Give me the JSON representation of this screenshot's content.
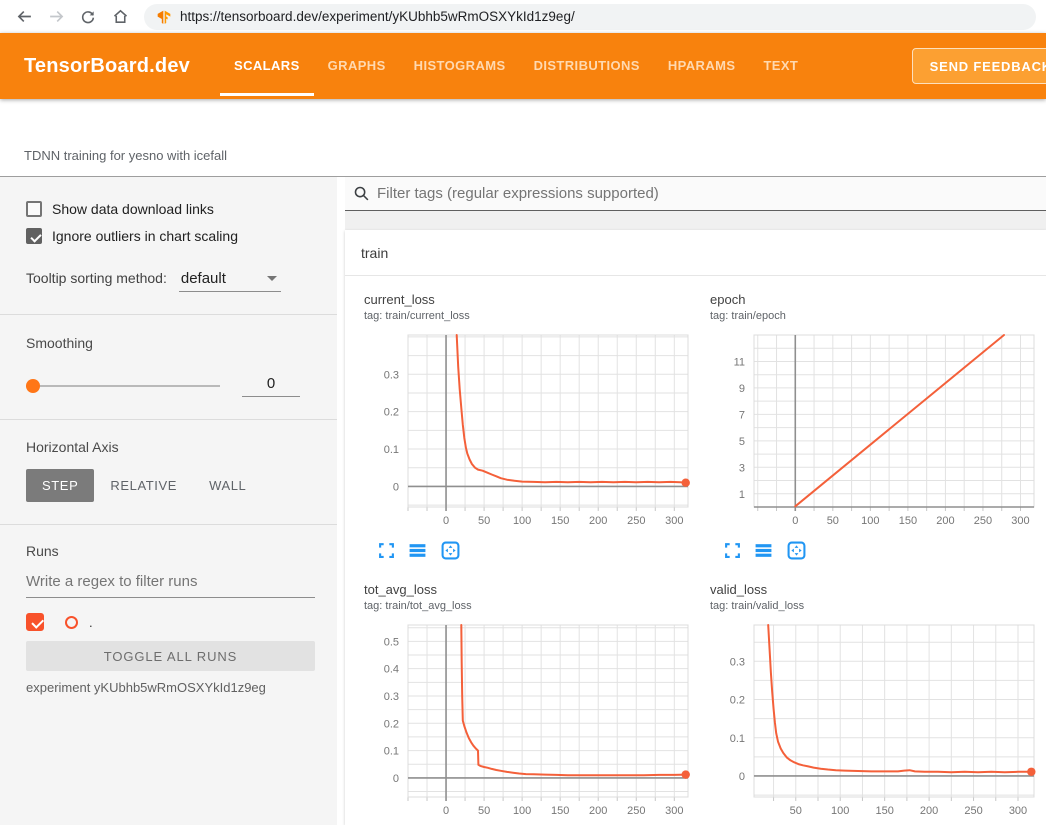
{
  "browser": {
    "url": "https://tensorboard.dev/experiment/yKUbhb5wRmOSXYkId1z9eg/"
  },
  "icons": {
    "back": "←",
    "forward": "→",
    "browser_set": [
      "back-icon",
      "forward-icon",
      "reload-icon",
      "home-icon",
      "tensorboard-favicon"
    ],
    "main_set": [
      "search-icon"
    ],
    "chart_actions": [
      "fullscreen-icon",
      "data-table-icon",
      "fit-domain-icon"
    ]
  },
  "header": {
    "brand": "TensorBoard.dev",
    "nav": [
      {
        "label": "SCALARS",
        "active": true
      },
      {
        "label": "GRAPHS",
        "active": false
      },
      {
        "label": "HISTOGRAMS",
        "active": false
      },
      {
        "label": "DISTRIBUTIONS",
        "active": false
      },
      {
        "label": "HPARAMS",
        "active": false
      },
      {
        "label": "TEXT",
        "active": false
      }
    ],
    "feedback_label": "SEND FEEDBACK"
  },
  "experiment_title": "TDNN training for yesno with icefall",
  "sidebar": {
    "show_download": {
      "label": "Show data download links",
      "checked": false
    },
    "ignore_outliers": {
      "label": "Ignore outliers in chart scaling",
      "checked": true
    },
    "tooltip_sort": {
      "label": "Tooltip sorting method:",
      "value": "default"
    },
    "smoothing": {
      "label": "Smoothing",
      "value": "0"
    },
    "axis": {
      "label": "Horizontal Axis",
      "options": [
        "STEP",
        "RELATIVE",
        "WALL"
      ],
      "selected": "STEP"
    },
    "runs": {
      "label": "Runs",
      "filter_placeholder": "Write a regex to filter runs",
      "items": [
        {
          "name": ".",
          "checked": true
        }
      ],
      "toggle_label": "TOGGLE ALL RUNS",
      "experiment": "experiment yKUbhb5wRmOSXYkId1z9eg"
    }
  },
  "main": {
    "filter_placeholder": "Filter tags (regular expressions supported)",
    "section": "train"
  },
  "colors": {
    "header_bg": "#f8820d",
    "feedback_btn_bg": "#fca032",
    "feedback_btn_border": "#fde0bd",
    "nav_inactive": "#ffd9b0",
    "run_accent": "#f8522b",
    "slider_accent": "#ff7617",
    "icon_blue": "#2196f3",
    "checked_checkbox": "#616161"
  },
  "chart_data": [
    {
      "type": "line",
      "title": "current_loss",
      "tag": "tag: train/current_loss",
      "color": "#f4603a",
      "grid": true,
      "legend": "none",
      "x_range": [
        -50,
        318
      ],
      "y_range": [
        -0.055,
        0.405
      ],
      "x_ticks": [
        0,
        50,
        100,
        150,
        200,
        250,
        300
      ],
      "y_ticks": [
        0,
        0.1,
        0.2,
        0.3
      ],
      "x_minor": 25,
      "y_minor": 0.05,
      "end_dot": true,
      "points": [
        [
          14,
          0.405
        ],
        [
          16,
          0.32
        ],
        [
          18,
          0.26
        ],
        [
          20,
          0.21
        ],
        [
          22,
          0.165
        ],
        [
          24,
          0.13
        ],
        [
          26,
          0.105
        ],
        [
          28,
          0.088
        ],
        [
          31,
          0.072
        ],
        [
          34,
          0.06
        ],
        [
          38,
          0.05
        ],
        [
          42,
          0.045
        ],
        [
          48,
          0.042
        ],
        [
          54,
          0.037
        ],
        [
          60,
          0.032
        ],
        [
          66,
          0.027
        ],
        [
          72,
          0.022
        ],
        [
          80,
          0.018
        ],
        [
          90,
          0.015
        ],
        [
          100,
          0.013
        ],
        [
          115,
          0.012
        ],
        [
          130,
          0.011
        ],
        [
          145,
          0.012
        ],
        [
          160,
          0.011
        ],
        [
          175,
          0.012
        ],
        [
          190,
          0.011
        ],
        [
          205,
          0.012
        ],
        [
          220,
          0.011
        ],
        [
          235,
          0.012
        ],
        [
          250,
          0.011
        ],
        [
          265,
          0.012
        ],
        [
          280,
          0.011
        ],
        [
          295,
          0.012
        ],
        [
          308,
          0.011
        ],
        [
          315,
          0.01
        ]
      ]
    },
    {
      "type": "line",
      "title": "epoch",
      "tag": "tag: train/epoch",
      "color": "#f4603a",
      "grid": true,
      "legend": "none",
      "x_range": [
        -55,
        318
      ],
      "y_range": [
        0,
        13
      ],
      "x_ticks": [
        0,
        50,
        100,
        150,
        200,
        250,
        300
      ],
      "y_ticks": [
        1,
        3,
        5,
        7,
        9,
        11
      ],
      "x_minor": 25,
      "y_minor": 1,
      "end_dot": false,
      "points": [
        [
          0,
          0.05
        ],
        [
          278,
          13
        ]
      ]
    },
    {
      "type": "line",
      "title": "tot_avg_loss",
      "tag": "tag: train/tot_avg_loss",
      "color": "#f4603a",
      "grid": true,
      "legend": "none",
      "x_range": [
        -50,
        318
      ],
      "y_range": [
        -0.07,
        0.56
      ],
      "x_ticks": [
        0,
        50,
        100,
        150,
        200,
        250,
        300
      ],
      "y_ticks": [
        0,
        0.1,
        0.2,
        0.3,
        0.4,
        0.5
      ],
      "x_minor": 25,
      "y_minor": 0.05,
      "end_dot": true,
      "points": [
        [
          20,
          0.56
        ],
        [
          20.6,
          0.42
        ],
        [
          21.2,
          0.3
        ],
        [
          22,
          0.21
        ],
        [
          24,
          0.19
        ],
        [
          27,
          0.165
        ],
        [
          30,
          0.145
        ],
        [
          33,
          0.13
        ],
        [
          36,
          0.118
        ],
        [
          39,
          0.108
        ],
        [
          42,
          0.1
        ],
        [
          42.5,
          0.048
        ],
        [
          45,
          0.044
        ],
        [
          50,
          0.04
        ],
        [
          55,
          0.037
        ],
        [
          60,
          0.033
        ],
        [
          66,
          0.029
        ],
        [
          72,
          0.026
        ],
        [
          80,
          0.022
        ],
        [
          88,
          0.019
        ],
        [
          96,
          0.016
        ],
        [
          105,
          0.014
        ],
        [
          115,
          0.013
        ],
        [
          130,
          0.012
        ],
        [
          145,
          0.011
        ],
        [
          160,
          0.01
        ],
        [
          180,
          0.01
        ],
        [
          200,
          0.01
        ],
        [
          220,
          0.01
        ],
        [
          240,
          0.01
        ],
        [
          260,
          0.01
        ],
        [
          280,
          0.011
        ],
        [
          300,
          0.011
        ],
        [
          315,
          0.012
        ]
      ]
    },
    {
      "type": "line",
      "title": "valid_loss",
      "tag": "tag: train/valid_loss",
      "color": "#f4603a",
      "grid": true,
      "legend": "none",
      "x_range": [
        3,
        318
      ],
      "y_range": [
        -0.055,
        0.395
      ],
      "x_ticks": [
        50,
        100,
        150,
        200,
        250,
        300
      ],
      "y_ticks": [
        0,
        0.1,
        0.2,
        0.3
      ],
      "x_minor": 25,
      "y_minor": 0.05,
      "end_dot": true,
      "points": [
        [
          19,
          0.395
        ],
        [
          20.5,
          0.33
        ],
        [
          22,
          0.27
        ],
        [
          23.5,
          0.22
        ],
        [
          25,
          0.175
        ],
        [
          26.5,
          0.14
        ],
        [
          28,
          0.112
        ],
        [
          30,
          0.09
        ],
        [
          33,
          0.072
        ],
        [
          36,
          0.06
        ],
        [
          40,
          0.048
        ],
        [
          44,
          0.041
        ],
        [
          48,
          0.036
        ],
        [
          53,
          0.031
        ],
        [
          58,
          0.028
        ],
        [
          64,
          0.025
        ],
        [
          70,
          0.022
        ],
        [
          78,
          0.019
        ],
        [
          86,
          0.017
        ],
        [
          95,
          0.015
        ],
        [
          105,
          0.014
        ],
        [
          120,
          0.013
        ],
        [
          135,
          0.012
        ],
        [
          150,
          0.012
        ],
        [
          165,
          0.012
        ],
        [
          172,
          0.014
        ],
        [
          178,
          0.015
        ],
        [
          184,
          0.012
        ],
        [
          195,
          0.011
        ],
        [
          210,
          0.011
        ],
        [
          225,
          0.01
        ],
        [
          240,
          0.011
        ],
        [
          255,
          0.01
        ],
        [
          270,
          0.011
        ],
        [
          285,
          0.01
        ],
        [
          300,
          0.011
        ],
        [
          315,
          0.011
        ]
      ]
    }
  ]
}
